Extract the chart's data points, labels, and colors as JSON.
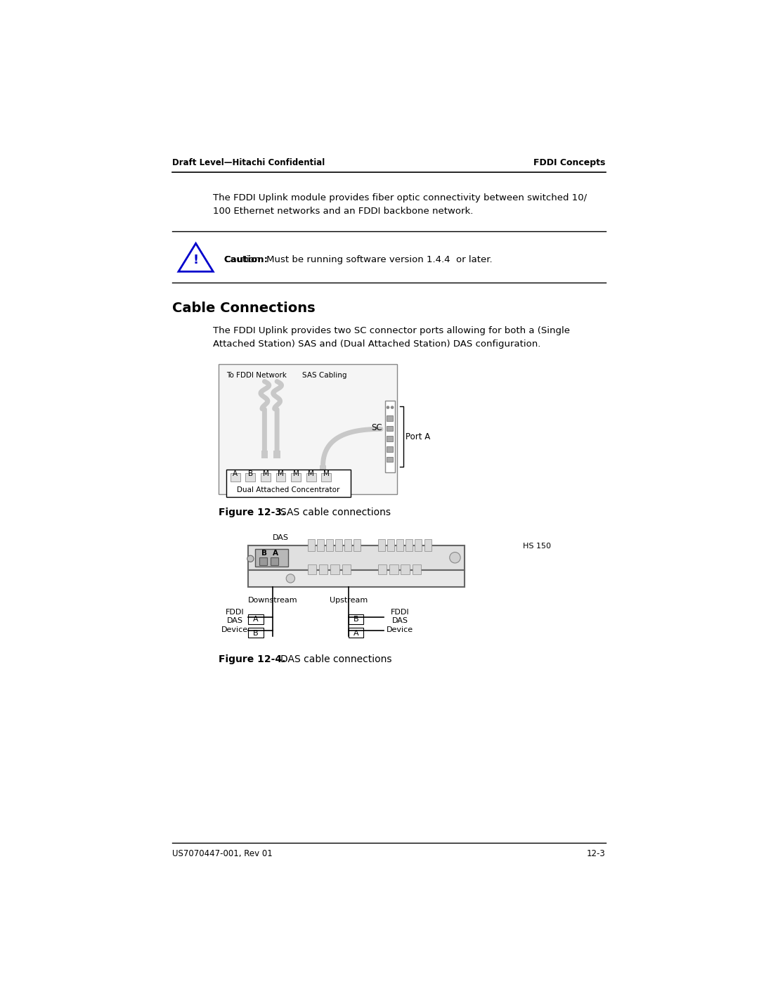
{
  "bg_color": "#ffffff",
  "text_color": "#000000",
  "header_left": "Draft Level—Hitachi Confidential",
  "header_right": "FDDI Concepts",
  "footer_left": "US7070447-001, Rev 01",
  "footer_right": "12-3",
  "intro_text": "The FDDI Uplink module provides fiber optic connectivity between switched 10/\n100 Ethernet networks and an FDDI backbone network.",
  "caution_text": "Caution:",
  "caution_body": " Must be running software version 1.4.4  or later.",
  "section_title": "Cable Connections",
  "section_body": "The FDDI Uplink provides two SC connector ports allowing for both a (Single\nAttached Station) SAS and (Dual Attached Station) DAS configuration.",
  "fig1_title": "Figure 12-3.",
  "fig1_caption": "SAS cable connections",
  "fig2_title": "Figure 12-4.",
  "fig2_caption": "DAS cable connections",
  "sas_label1": "To FDDI Network",
  "sas_label2": "SAS Cabling",
  "sas_port_label": "SC",
  "sas_port_a_label": "Port A",
  "sas_concentrator_labels": [
    "A",
    "B",
    "M",
    "M",
    "M",
    "M",
    "M"
  ],
  "sas_concentrator_text": "Dual Attached Concentrator",
  "das_hs_label": "HS 150",
  "das_label": "DAS",
  "das_downstream": "Downstream",
  "das_upstream": "Upstream",
  "das_fddi_left": "FDDI\nDAS\nDevice",
  "das_fddi_right": "FDDI\nDAS\nDevice",
  "cable_color": "#c8c8c8",
  "connector_color": "#a8a8a8"
}
